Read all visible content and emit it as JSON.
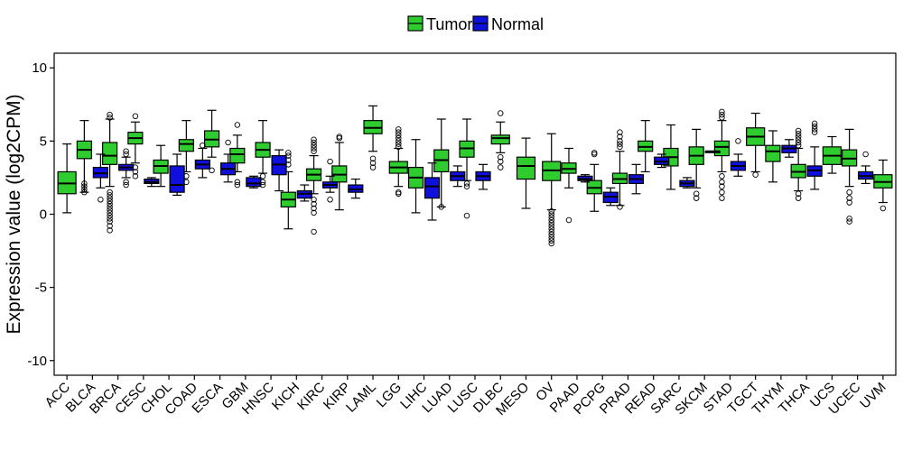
{
  "chart_data": {
    "type": "boxplot",
    "title": "",
    "xlabel": "",
    "ylabel": "Expression value (log2CPM)",
    "ylim": [
      -11,
      11
    ],
    "yticks": [
      -10,
      -5,
      0,
      5,
      10
    ],
    "grid": false,
    "legend": {
      "position": "top-center",
      "entries": [
        {
          "name": "Tumor",
          "color": "#2ecc2e"
        },
        {
          "name": "Normal",
          "color": "#1010dd"
        }
      ]
    },
    "categories": [
      "ACC",
      "BLCA",
      "BRCA",
      "CESC",
      "CHOL",
      "COAD",
      "ESCA",
      "GBM",
      "HNSC",
      "KICH",
      "KIRC",
      "KIRP",
      "LAML",
      "LGG",
      "LIHC",
      "LUAD",
      "LUSC",
      "DLBC",
      "MESO",
      "OV",
      "PAAD",
      "PCPG",
      "PRAD",
      "READ",
      "SARC",
      "SKCM",
      "STAD",
      "TGCT",
      "THYM",
      "THCA",
      "UCS",
      "UCEC",
      "UVM"
    ],
    "series": [
      {
        "name": "Tumor",
        "color": "#2ecc2e",
        "boxes": [
          {
            "category": "ACC",
            "whisker_low": 0.1,
            "q1": 1.4,
            "median": 2.1,
            "q3": 2.9,
            "whisker_high": 4.8,
            "outliers": []
          },
          {
            "category": "BLCA",
            "whisker_low": 1.5,
            "q1": 3.8,
            "median": 4.4,
            "q3": 5.0,
            "whisker_high": 6.4,
            "outliers": [
              1.5,
              1.7,
              1.9,
              2.1
            ]
          },
          {
            "category": "BRCA",
            "whisker_low": 1.9,
            "q1": 3.4,
            "median": 4.0,
            "q3": 4.9,
            "whisker_high": 6.5,
            "outliers": [
              6.6,
              6.8,
              -1.1,
              -0.8,
              -0.5,
              -0.3,
              -0.1,
              0.1,
              0.3,
              0.5,
              0.7,
              0.9,
              1.1,
              1.3,
              1.5
            ]
          },
          {
            "category": "CESC",
            "whisker_low": 3.5,
            "q1": 4.8,
            "median": 5.2,
            "q3": 5.6,
            "whisker_high": 6.3,
            "outliers": [
              6.7,
              2.6,
              2.9,
              3.2
            ]
          },
          {
            "category": "CHOL",
            "whisker_low": 1.9,
            "q1": 2.8,
            "median": 3.3,
            "q3": 3.7,
            "whisker_high": 4.7,
            "outliers": []
          },
          {
            "category": "COAD",
            "whisker_low": 2.9,
            "q1": 4.3,
            "median": 4.8,
            "q3": 5.1,
            "whisker_high": 6.4,
            "outliers": [
              2.6,
              2.2
            ]
          },
          {
            "category": "ESCA",
            "whisker_low": 3.9,
            "q1": 4.6,
            "median": 5.1,
            "q3": 5.7,
            "whisker_high": 7.1,
            "outliers": [
              3.0
            ]
          },
          {
            "category": "GBM",
            "whisker_low": 2.9,
            "q1": 3.5,
            "median": 4.1,
            "q3": 4.5,
            "whisker_high": 5.4,
            "outliers": [
              6.1,
              2.2,
              2.0
            ]
          },
          {
            "category": "HNSC",
            "whisker_low": 2.8,
            "q1": 3.9,
            "median": 4.4,
            "q3": 4.9,
            "whisker_high": 6.4,
            "outliers": [
              2.6,
              2.2,
              2.0
            ]
          },
          {
            "category": "KICH",
            "whisker_low": -1.0,
            "q1": 0.5,
            "median": 1.0,
            "q3": 1.5,
            "whisker_high": 2.9,
            "outliers": [
              3.4,
              3.7,
              4.0,
              4.2
            ]
          },
          {
            "category": "KIRC",
            "whisker_low": 1.4,
            "q1": 2.3,
            "median": 2.7,
            "q3": 3.1,
            "whisker_high": 4.0,
            "outliers": [
              4.3,
              4.5,
              4.7,
              4.9,
              5.1,
              1.0,
              0.7,
              0.4,
              0.1,
              -1.2
            ]
          },
          {
            "category": "KIRP",
            "whisker_low": 0.3,
            "q1": 2.2,
            "median": 2.7,
            "q3": 3.3,
            "whisker_high": 4.9,
            "outliers": [
              5.2,
              5.3
            ]
          },
          {
            "category": "LAML",
            "whisker_low": 4.3,
            "q1": 5.5,
            "median": 5.9,
            "q3": 6.4,
            "whisker_high": 7.4,
            "outliers": [
              3.8,
              3.5,
              3.2
            ]
          },
          {
            "category": "LGG",
            "whisker_low": 1.9,
            "q1": 2.8,
            "median": 3.2,
            "q3": 3.6,
            "whisker_high": 4.5,
            "outliers": [
              4.6,
              4.8,
              5.0,
              5.2,
              5.4,
              5.6,
              5.8,
              1.5,
              1.4
            ]
          },
          {
            "category": "LIHC",
            "whisker_low": 0.1,
            "q1": 1.8,
            "median": 2.5,
            "q3": 3.2,
            "whisker_high": 5.1,
            "outliers": []
          },
          {
            "category": "LUAD",
            "whisker_low": 0.5,
            "q1": 2.9,
            "median": 3.7,
            "q3": 4.4,
            "whisker_high": 6.5,
            "outliers": [
              0.5
            ]
          },
          {
            "category": "LUSC",
            "whisker_low": 2.3,
            "q1": 3.9,
            "median": 4.5,
            "q3": 5.0,
            "whisker_high": 6.5,
            "outliers": [
              2.1,
              1.9,
              -0.1
            ]
          },
          {
            "category": "DLBC",
            "whisker_low": 4.2,
            "q1": 4.8,
            "median": 5.2,
            "q3": 5.4,
            "whisker_high": 6.3,
            "outliers": [
              6.9,
              3.9,
              3.6,
              3.2
            ]
          },
          {
            "category": "MESO",
            "whisker_low": 0.4,
            "q1": 2.4,
            "median": 3.3,
            "q3": 3.9,
            "whisker_high": 5.2,
            "outliers": []
          },
          {
            "category": "OV",
            "whisker_low": 0.3,
            "q1": 2.3,
            "median": 3.0,
            "q3": 3.6,
            "whisker_high": 5.5,
            "outliers": [
              0.2,
              0.0,
              -0.2,
              -0.4,
              -0.6,
              -0.8,
              -1.0,
              -1.2,
              -1.4,
              -1.6,
              -1.8,
              -2.0
            ]
          },
          {
            "category": "PAAD",
            "whisker_low": 1.8,
            "q1": 2.8,
            "median": 3.1,
            "q3": 3.5,
            "whisker_high": 4.5,
            "outliers": [
              -0.4
            ]
          },
          {
            "category": "PCPG",
            "whisker_low": 0.2,
            "q1": 1.4,
            "median": 1.8,
            "q3": 2.3,
            "whisker_high": 3.4,
            "outliers": [
              4.1,
              4.2
            ]
          },
          {
            "category": "PRAD",
            "whisker_low": 0.6,
            "q1": 2.1,
            "median": 2.4,
            "q3": 2.8,
            "whisker_high": 4.3,
            "outliers": [
              4.6,
              4.8,
              5.0,
              5.3,
              5.6,
              0.5
            ]
          },
          {
            "category": "READ",
            "whisker_low": 2.9,
            "q1": 4.3,
            "median": 4.6,
            "q3": 5.0,
            "whisker_high": 6.4,
            "outliers": []
          },
          {
            "category": "SARC",
            "whisker_low": 1.7,
            "q1": 3.3,
            "median": 3.9,
            "q3": 4.5,
            "whisker_high": 6.1,
            "outliers": []
          },
          {
            "category": "SKCM",
            "whisker_low": 1.8,
            "q1": 3.4,
            "median": 4.0,
            "q3": 4.6,
            "whisker_high": 5.8,
            "outliers": [
              1.4,
              1.1
            ]
          },
          {
            "category": "STAD",
            "whisker_low": 2.9,
            "q1": 4.0,
            "median": 4.6,
            "q3": 5.0,
            "whisker_high": 6.4,
            "outliers": [
              6.6,
              6.8,
              7.0,
              2.6,
              2.2,
              1.9,
              1.5,
              1.1
            ]
          },
          {
            "category": "TGCT",
            "whisker_low": 2.9,
            "q1": 4.7,
            "median": 5.3,
            "q3": 5.9,
            "whisker_high": 6.9,
            "outliers": [
              2.7
            ]
          },
          {
            "category": "THYM",
            "whisker_low": 2.2,
            "q1": 3.6,
            "median": 4.3,
            "q3": 4.7,
            "whisker_high": 5.7,
            "outliers": []
          },
          {
            "category": "THCA",
            "whisker_low": 1.6,
            "q1": 2.5,
            "median": 2.9,
            "q3": 3.4,
            "whisker_high": 4.5,
            "outliers": [
              4.7,
              4.9,
              5.1,
              5.3,
              5.5,
              5.7,
              1.4,
              1.1
            ]
          },
          {
            "category": "UCS",
            "whisker_low": 2.8,
            "q1": 3.4,
            "median": 4.0,
            "q3": 4.6,
            "whisker_high": 5.3,
            "outliers": []
          },
          {
            "category": "UCEC",
            "whisker_low": 1.9,
            "q1": 3.3,
            "median": 3.8,
            "q3": 4.4,
            "whisker_high": 5.8,
            "outliers": [
              1.5,
              1.1,
              0.8,
              -0.3,
              -0.5
            ]
          },
          {
            "category": "UVM",
            "whisker_low": 0.8,
            "q1": 1.8,
            "median": 2.2,
            "q3": 2.7,
            "whisker_high": 3.7,
            "outliers": [
              0.4
            ]
          }
        ]
      },
      {
        "name": "Normal",
        "color": "#1010dd",
        "boxes": [
          {
            "category": "BLCA",
            "whisker_low": 1.8,
            "q1": 2.5,
            "median": 2.8,
            "q3": 3.2,
            "whisker_high": 4.1,
            "outliers": [
              1.0
            ]
          },
          {
            "category": "BRCA",
            "whisker_low": 2.5,
            "q1": 3.0,
            "median": 3.2,
            "q3": 3.4,
            "whisker_high": 3.9,
            "outliers": [
              4.3,
              4.1,
              2.2,
              2.0
            ]
          },
          {
            "category": "CESC",
            "whisker_low": 1.9,
            "q1": 2.1,
            "median": 2.2,
            "q3": 2.4,
            "whisker_high": 2.5,
            "outliers": []
          },
          {
            "category": "CHOL",
            "whisker_low": 1.3,
            "q1": 1.5,
            "median": 2.0,
            "q3": 3.3,
            "whisker_high": 4.1,
            "outliers": []
          },
          {
            "category": "COAD",
            "whisker_low": 2.5,
            "q1": 3.1,
            "median": 3.4,
            "q3": 3.7,
            "whisker_high": 4.5,
            "outliers": [
              4.7
            ]
          },
          {
            "category": "ESCA",
            "whisker_low": 2.2,
            "q1": 2.7,
            "median": 3.1,
            "q3": 3.5,
            "whisker_high": 4.1,
            "outliers": [
              4.9
            ]
          },
          {
            "category": "GBM",
            "whisker_low": 1.8,
            "q1": 1.9,
            "median": 2.1,
            "q3": 2.5,
            "whisker_high": 2.6,
            "outliers": []
          },
          {
            "category": "HNSC",
            "whisker_low": 1.6,
            "q1": 2.7,
            "median": 3.4,
            "q3": 4.0,
            "whisker_high": 4.4,
            "outliers": []
          },
          {
            "category": "KICH",
            "whisker_low": 0.9,
            "q1": 1.1,
            "median": 1.4,
            "q3": 1.6,
            "whisker_high": 2.0,
            "outliers": []
          },
          {
            "category": "KIRC",
            "whisker_low": 1.5,
            "q1": 1.8,
            "median": 2.0,
            "q3": 2.2,
            "whisker_high": 2.6,
            "outliers": [
              1.0,
              3.6
            ]
          },
          {
            "category": "KIRP",
            "whisker_low": 1.1,
            "q1": 1.5,
            "median": 1.7,
            "q3": 2.0,
            "whisker_high": 2.4,
            "outliers": []
          },
          {
            "category": "LIHC",
            "whisker_low": -0.4,
            "q1": 1.1,
            "median": 1.9,
            "q3": 2.5,
            "whisker_high": 3.5,
            "outliers": []
          },
          {
            "category": "LUAD",
            "whisker_low": 1.9,
            "q1": 2.3,
            "median": 2.6,
            "q3": 2.9,
            "whisker_high": 3.3,
            "outliers": []
          },
          {
            "category": "LUSC",
            "whisker_low": 1.7,
            "q1": 2.3,
            "median": 2.6,
            "q3": 2.9,
            "whisker_high": 3.4,
            "outliers": []
          },
          {
            "category": "PAAD",
            "whisker_low": 2.2,
            "q1": 2.3,
            "median": 2.4,
            "q3": 2.6,
            "whisker_high": 2.7,
            "outliers": []
          },
          {
            "category": "PCPG",
            "whisker_low": 0.6,
            "q1": 0.8,
            "median": 1.2,
            "q3": 1.5,
            "whisker_high": 1.8,
            "outliers": []
          },
          {
            "category": "PRAD",
            "whisker_low": 1.4,
            "q1": 2.1,
            "median": 2.4,
            "q3": 2.7,
            "whisker_high": 3.4,
            "outliers": []
          },
          {
            "category": "READ",
            "whisker_low": 3.2,
            "q1": 3.4,
            "median": 3.6,
            "q3": 3.9,
            "whisker_high": 4.1,
            "outliers": []
          },
          {
            "category": "SARC",
            "whisker_low": 1.8,
            "q1": 1.9,
            "median": 2.1,
            "q3": 2.3,
            "whisker_high": 2.5,
            "outliers": []
          },
          {
            "category": "SKCM",
            "whisker_low": 4.3,
            "q1": 4.3,
            "median": 4.3,
            "q3": 4.3,
            "whisker_high": 4.3,
            "outliers": []
          },
          {
            "category": "STAD",
            "whisker_low": 2.6,
            "q1": 3.0,
            "median": 3.3,
            "q3": 3.6,
            "whisker_high": 4.1,
            "outliers": [
              5.0
            ]
          },
          {
            "category": "THYM",
            "whisker_low": 3.9,
            "q1": 4.2,
            "median": 4.5,
            "q3": 4.7,
            "whisker_high": 5.1,
            "outliers": []
          },
          {
            "category": "THCA",
            "whisker_low": 1.7,
            "q1": 2.6,
            "median": 3.0,
            "q3": 3.3,
            "whisker_high": 4.6,
            "outliers": [
              5.6,
              5.8,
              6.0,
              6.2
            ]
          },
          {
            "category": "UCEC",
            "whisker_low": 2.1,
            "q1": 2.4,
            "median": 2.6,
            "q3": 2.9,
            "whisker_high": 3.3,
            "outliers": [
              4.1
            ]
          }
        ]
      }
    ]
  }
}
